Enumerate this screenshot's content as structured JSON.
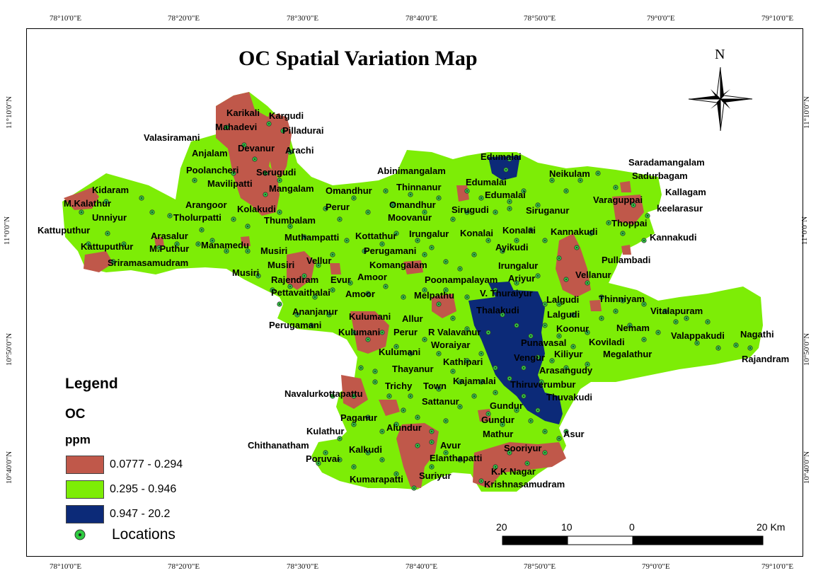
{
  "title": "OC Spatial Variation Map",
  "north_label": "N",
  "lon_ticks": [
    "78°10'0\"E",
    "78°20'0\"E",
    "78°30'0\"E",
    "78°40'0\"E",
    "78°50'0\"E",
    "79°0'0\"E",
    "79°10'0\"E"
  ],
  "lat_ticks": [
    "11°10'0\"N",
    "11°0'0\"N",
    "10°50'0\"N",
    "10°40'0\"N"
  ],
  "legend": {
    "title": "Legend",
    "variable": "OC",
    "unit": "ppm",
    "classes": [
      {
        "label": "0.0777 - 0.294",
        "color": "#c0584a"
      },
      {
        "label": "0.295 - 0.946",
        "color": "#7ded06"
      },
      {
        "label": "0.947 - 20.2",
        "color": "#0c2a78"
      }
    ],
    "locations_label": "Locations"
  },
  "scale_bar": {
    "labels": [
      "20",
      "10",
      "0",
      "20 Km"
    ]
  },
  "places": [
    "Karikali",
    "Kargudi",
    "Mahadevi",
    "Pilladurai",
    "Valasiramani",
    "Devanur",
    "Arachi",
    "Anjalam",
    "Poolancheri",
    "Serugudi",
    "Edumalai",
    "Saradamangalam",
    "Sadurbagam",
    "Neikulam",
    "Abinimangalam",
    "Mavilipatti",
    "Mangalam",
    "Omandhur",
    "Kidaram",
    "Thinnanur",
    "Kallagam",
    "M.Kalathur",
    "Arangoor",
    "Perur",
    "Kolakudi",
    "Edumalai",
    "Varaguppai",
    "Unniyur",
    "Tholurpatti",
    "Edumalai",
    "keelarasur",
    "Omandhur",
    "Sirugudi",
    "Siruganur",
    "Thumbalam",
    "Moovanur",
    "Thoppai",
    "Kattuputhur",
    "Irungalur",
    "Konalai",
    "Konalai",
    "Kannakudi",
    "Arasalur",
    "Muthampatti",
    "Kottathur",
    "Kannakudi",
    "Kattuputhur",
    "M.Puthur",
    "Manamedu",
    "Ayikudi",
    "Musiri",
    "Perugamani",
    "Pullambadi",
    "Sriramasamudram",
    "Musiri",
    "Vellur",
    "Komangalam",
    "Irungalur",
    "Musiri",
    "Amoor",
    "Vellanur",
    "Rajendram",
    "Evur",
    "Ariyur",
    "Poonampalayam",
    "Pettavaithalai",
    "Amoor",
    "Melpathu",
    "V. Thuraiyur",
    "Thinniyam",
    "Lalgudi",
    "Ananjanur",
    "Thalakudi",
    "Lalgudi",
    "Vitalapuram",
    "Allur",
    "Perugamani",
    "Kulumani",
    "Koonur",
    "Nemam",
    "Kulumani",
    "Perur",
    "R Valavanur",
    "Valappakudi",
    "Nagathi",
    "Punavasal",
    "Koviladi",
    "Woraiyar",
    "Kiliyur",
    "Megalathur",
    "Kulumani",
    "Vengur",
    "Kathipari",
    "Rajandram",
    "Thayanur",
    "Arasangudy",
    "Kajamalai",
    "Trichy",
    "Town",
    "Thiruverumbur",
    "Navalurkottapattu",
    "Thuvakudi",
    "Sattanur",
    "Gundur",
    "Paganur",
    "Gundur",
    "Alundur",
    "Kulathur",
    "Mathur",
    "Asur",
    "Chithanatham",
    "Avur",
    "Sooriyur",
    "Kalkudi",
    "Poruvai",
    "Elanthapatti",
    "K.K Nagar",
    "Suriyur",
    "Kumarapatti",
    "Krishnasamudram"
  ]
}
